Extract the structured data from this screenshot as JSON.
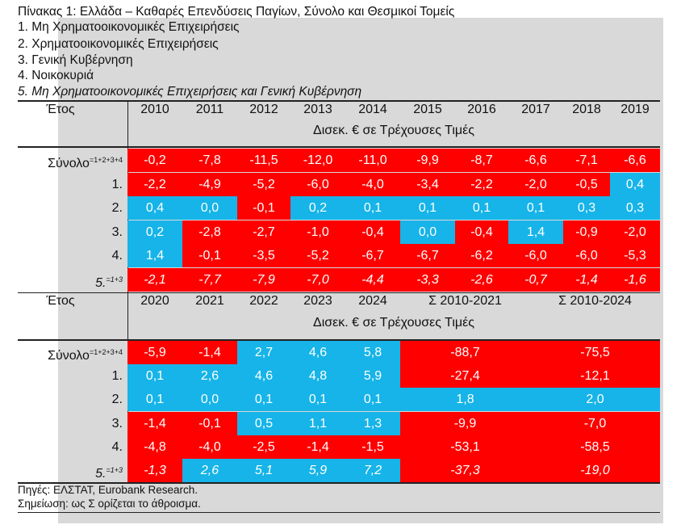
{
  "title_lines": [
    "Πίνακας 1: Ελλάδα – Καθαρές Επενδύσεις Παγίων, Σύνολο και Θεσμικοί Τομείς",
    "1. Μη Χρηματοοικονομικές Επιχειρήσεις",
    "2. Χρηματοοικονομικές Επιχειρήσεις",
    "3. Γενική Κυβέρνηση",
    "4. Νοικοκυριά",
    "5. Μη Χρηματοοικονομικές Επιχειρήσεις και Γενική Κυβέρνηση"
  ],
  "colors": {
    "negative": "#ff0000",
    "positive": "#16b4e8",
    "frame": "#d9d9d9"
  },
  "row_labels": [
    {
      "text": "Σύνολο",
      "sup": "=1+2+3+4",
      "italic": false
    },
    {
      "text": "1.",
      "sup": "",
      "italic": false
    },
    {
      "text": "2.",
      "sup": "",
      "italic": false
    },
    {
      "text": "3.",
      "sup": "",
      "italic": false
    },
    {
      "text": "4.",
      "sup": "",
      "italic": false
    },
    {
      "text": "5.",
      "sup": "=1+3",
      "italic": true
    }
  ],
  "table1": {
    "year_label": "Έτος",
    "unit": "Δισεκ. € σε Τρέχουσες Τιμές",
    "columns": [
      "2010",
      "2011",
      "2012",
      "2013",
      "2014",
      "2015",
      "2016",
      "2017",
      "2018",
      "2019"
    ],
    "rows": [
      [
        "-0,2",
        "-7,8",
        "-11,5",
        "-12,0",
        "-11,0",
        "-9,9",
        "-8,7",
        "-6,6",
        "-7,1",
        "-6,6"
      ],
      [
        "-2,2",
        "-4,9",
        "-5,2",
        "-6,0",
        "-4,0",
        "-3,4",
        "-2,2",
        "-2,0",
        "-0,5",
        "0,4"
      ],
      [
        "0,4",
        "0,0",
        "-0,1",
        "0,2",
        "0,1",
        "0,1",
        "0,1",
        "0,1",
        "0,3",
        "0,3"
      ],
      [
        "0,2",
        "-2,8",
        "-2,7",
        "-1,0",
        "-0,4",
        "0,0",
        "-0,4",
        "1,4",
        "-0,9",
        "-2,0"
      ],
      [
        "1,4",
        "-0,1",
        "-3,5",
        "-5,2",
        "-6,7",
        "-6,7",
        "-6,2",
        "-6,0",
        "-6,0",
        "-5,3"
      ],
      [
        "-2,1",
        "-7,7",
        "-7,9",
        "-7,0",
        "-4,4",
        "-3,3",
        "-2,6",
        "-0,7",
        "-1,4",
        "-1,6"
      ]
    ]
  },
  "table2": {
    "year_label": "Έτος",
    "unit": "Δισεκ. € σε Τρέχουσες Τιμές",
    "columns": [
      "2020",
      "2021",
      "2022",
      "2023",
      "2024",
      "Σ 2010-2021",
      "Σ 2010-2024"
    ],
    "rows": [
      [
        "-5,9",
        "-1,4",
        "2,7",
        "4,6",
        "5,8",
        "-88,7",
        "-75,5"
      ],
      [
        "0,1",
        "2,6",
        "4,6",
        "4,8",
        "5,9",
        "-27,4",
        "-12,1"
      ],
      [
        "0,1",
        "0,0",
        "0,1",
        "0,1",
        "0,1",
        "1,8",
        "2,0"
      ],
      [
        "-1,4",
        "-0,1",
        "0,5",
        "1,1",
        "1,3",
        "-9,9",
        "-7,0"
      ],
      [
        "-4,8",
        "-4,0",
        "-2,5",
        "-1,4",
        "-1,5",
        "-53,1",
        "-58,5"
      ],
      [
        "-1,3",
        "2,6",
        "5,1",
        "5,9",
        "7,2",
        "-37,3",
        "-19,0"
      ]
    ]
  },
  "footer_lines": [
    "Πηγές: ΕΛΣΤΑΤ, Eurobank Research.",
    "Σημείωση: ως Σ ορίζεται το άθροισμα."
  ]
}
